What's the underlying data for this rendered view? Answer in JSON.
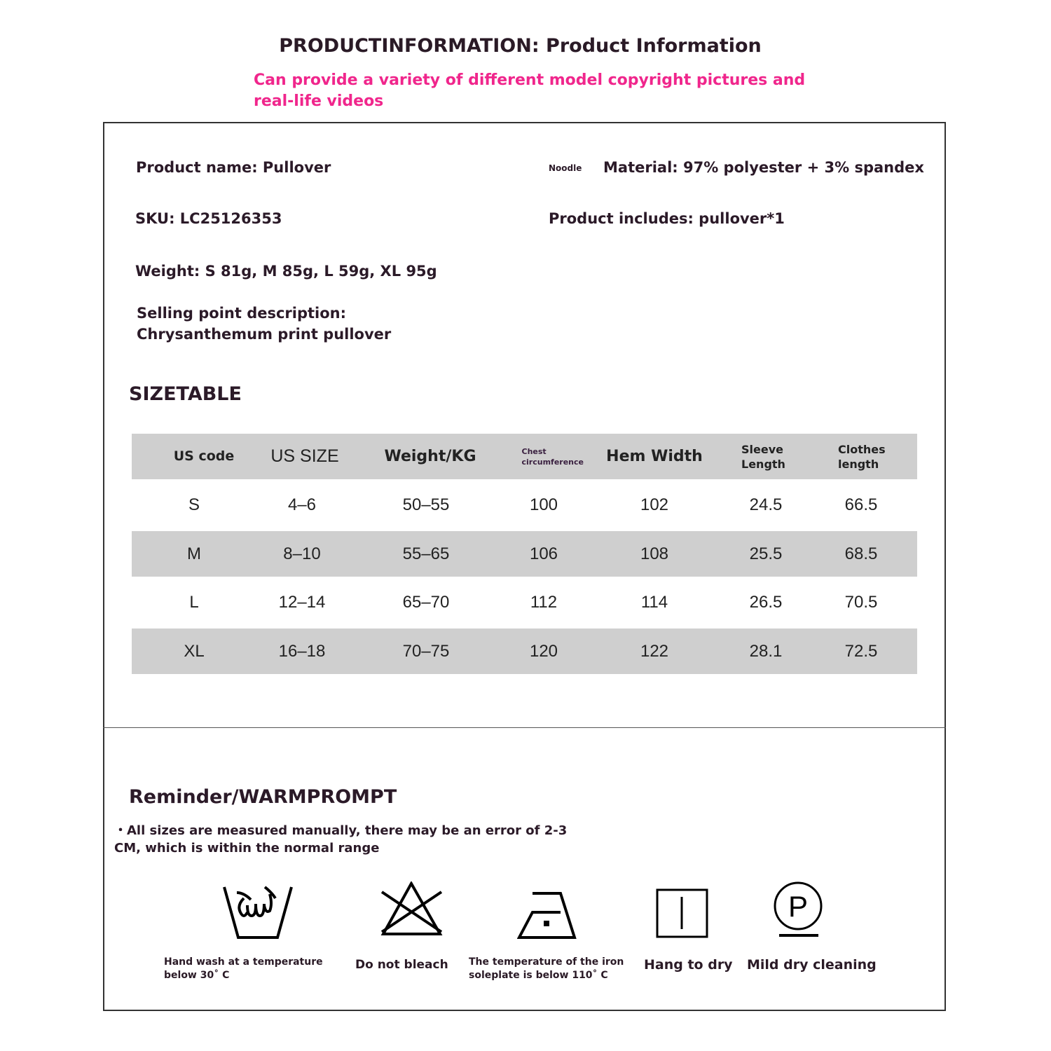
{
  "header": {
    "title": "PRODUCTINFORMATION: Product Information",
    "subtitle": "Can provide a variety of different model copyright pictures and real-life videos"
  },
  "info": {
    "product_name": "Product name: Pullover",
    "noodle": "Noodle",
    "material": "Material: 97% polyester + 3% spandex",
    "sku": "SKU: LC25126353",
    "includes": "Product includes: pullover*1",
    "weight": "Weight: S 81g, M 85g, L 59g, XL 95g",
    "selling_label": "Selling point description:",
    "selling_text": "Chrysanthemum print pullover"
  },
  "size_table": {
    "title": "SIZETABLE",
    "headers": [
      "US code",
      "US SIZE",
      "Weight/KG",
      "Chest circumference",
      "Hem Width",
      "Sleeve Length",
      "Clothes length"
    ],
    "rows": [
      [
        "S",
        "4–6",
        "50–55",
        "100",
        "102",
        "24.5",
        "66.5"
      ],
      [
        "M",
        "8–10",
        "55–65",
        "106",
        "108",
        "25.5",
        "68.5"
      ],
      [
        "L",
        "12–14",
        "65–70",
        "112",
        "114",
        "26.5",
        "70.5"
      ],
      [
        "XL",
        "16–18",
        "70–75",
        "120",
        "122",
        "28.1",
        "72.5"
      ]
    ]
  },
  "reminder": {
    "title": "Reminder/WARMPROMPT",
    "text": "・All sizes are measured manually, there may be an error of 2-3 CM, which is within the normal range"
  },
  "care": [
    {
      "icon": "hand-wash-icon",
      "label": "Hand wash at a temperature below 30˚ C"
    },
    {
      "icon": "no-bleach-icon",
      "label": "Do not bleach"
    },
    {
      "icon": "iron-low-icon",
      "label": "The temperature of the iron soleplate is below 110˚ C"
    },
    {
      "icon": "hang-dry-icon",
      "label": "Hang to dry"
    },
    {
      "icon": "dry-clean-p-icon",
      "label": "Mild dry cleaning"
    }
  ],
  "colors": {
    "accent": "#f0268c",
    "table_gray": "#cfcfcf"
  }
}
